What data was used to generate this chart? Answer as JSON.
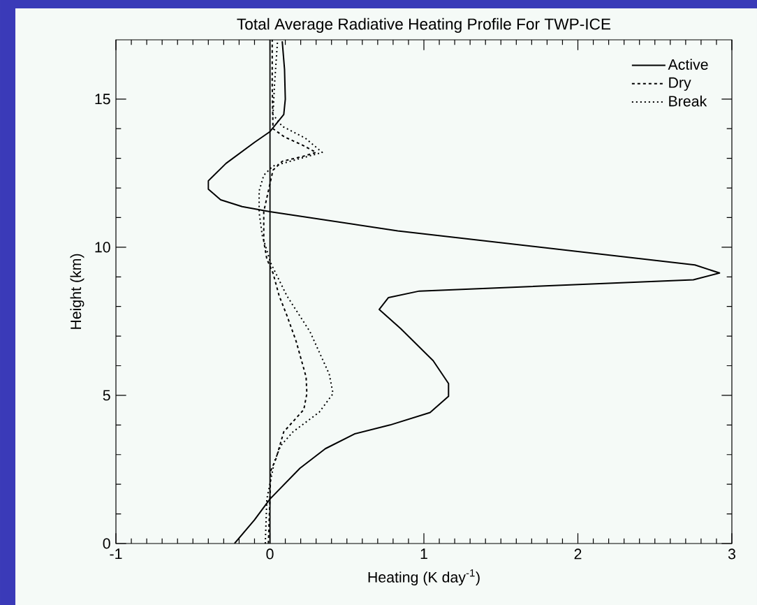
{
  "chart_data": {
    "type": "line",
    "title": "Total Average Radiative Heating Profile For TWP-ICE",
    "xlabel": "Heating (K day$^{-1}$)",
    "ylabel": "Height (km)",
    "xlim": [
      -1,
      3
    ],
    "ylim": [
      0,
      17
    ],
    "xticks": [
      -1,
      0,
      1,
      2,
      3
    ],
    "yticks": [
      0,
      5,
      10,
      15
    ],
    "grid": false,
    "legend": "top right",
    "marker": "none",
    "ref_lines": [
      {
        "axis": "x",
        "value": 0,
        "color": "#000000",
        "line_style": "solid"
      }
    ],
    "series": [
      {
        "name": "Active",
        "color": "#000000",
        "line_style": "solid",
        "x": [
          -0.23,
          -0.1,
          0,
          0.195,
          0.36,
          0.55,
          0.78,
          1.04,
          1.16,
          1.16,
          1.06,
          0.85,
          0.71,
          0.77,
          0.97,
          2.75,
          2.92,
          2.76,
          0.83,
          0,
          -0.18,
          -0.32,
          -0.4,
          -0.4,
          -0.285,
          -0.1,
          0,
          0.09,
          0.1,
          0.095,
          0.08
        ],
        "values": [
          0,
          0.8,
          1.5,
          2.54,
          3.2,
          3.7,
          4.0,
          4.42,
          4.97,
          5.4,
          6.17,
          7.25,
          7.9,
          8.3,
          8.52,
          8.9,
          9.13,
          9.4,
          10.55,
          11.2,
          11.37,
          11.6,
          11.96,
          12.24,
          12.83,
          13.54,
          13.9,
          14.48,
          15.0,
          16.0,
          16.95
        ]
      },
      {
        "name": "Dry",
        "color": "#000000",
        "line_style": "dashed",
        "x": [
          -0.01,
          0,
          0.005,
          0.04,
          0.09,
          0.22,
          0.24,
          0.235,
          0.17,
          0.11,
          0.06,
          0.02,
          -0.02,
          -0.04,
          -0.04,
          0.02,
          0.08,
          0.21,
          0.3,
          0.21,
          0.095,
          0.02,
          0.015,
          0.015
        ],
        "values": [
          0,
          1.5,
          2.45,
          2.87,
          3.77,
          4.52,
          5.06,
          5.62,
          6.83,
          7.7,
          8.36,
          9.13,
          9.6,
          10.2,
          11.2,
          12.6,
          12.9,
          13.06,
          13.2,
          13.45,
          13.72,
          14.0,
          15.5,
          17.0
        ]
      },
      {
        "name": "Break",
        "color": "#000000",
        "line_style": "dotted",
        "x": [
          -0.03,
          -0.02,
          0.03,
          0.07,
          0.15,
          0.32,
          0.41,
          0.385,
          0.26,
          0.11,
          0.005,
          -0.05,
          -0.07,
          -0.07,
          -0.04,
          0.02,
          0.34,
          0.23,
          0.08,
          0.02,
          0.03,
          0.05
        ],
        "values": [
          0,
          1.5,
          2.78,
          3.3,
          3.77,
          4.43,
          5.06,
          5.72,
          7.15,
          8.36,
          9.47,
          10.4,
          11.18,
          11.9,
          12.43,
          12.74,
          13.2,
          13.68,
          14.08,
          14.48,
          15.5,
          17.0
        ]
      }
    ]
  }
}
